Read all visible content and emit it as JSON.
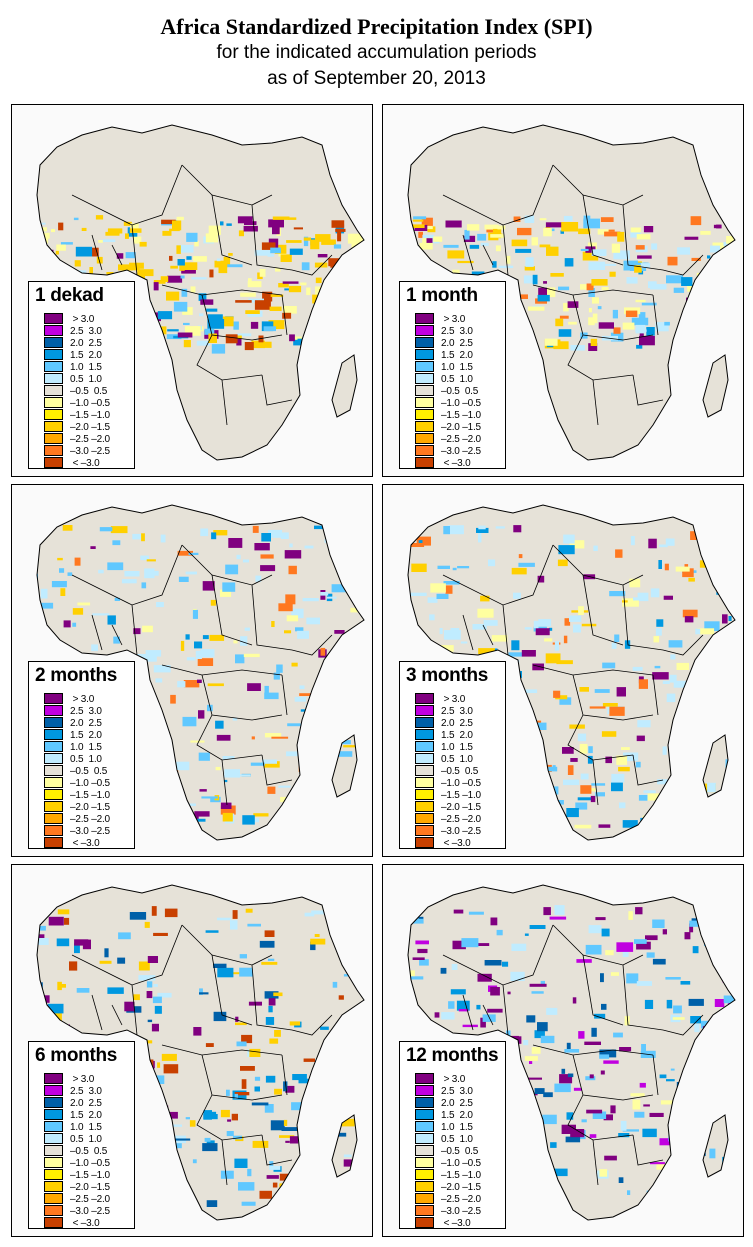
{
  "title": "Africa Standardized Precipitation Index (SPI)",
  "subtitle1": "for the indicated accumulation periods",
  "subtitle2": "as of September 20, 2013",
  "legend": [
    {
      "label": " > 3.0",
      "color": "#800080"
    },
    {
      "label": "2.5  3.0",
      "color": "#c000e0"
    },
    {
      "label": "2.0  2.5",
      "color": "#0060a8"
    },
    {
      "label": "1.5  2.0",
      "color": "#0098e0"
    },
    {
      "label": "1.0  1.5",
      "color": "#60c8ff"
    },
    {
      "label": "0.5  1.0",
      "color": "#c0ecff"
    },
    {
      "label": "–0.5  0.5",
      "color": "#e6e2d8"
    },
    {
      "label": "–1.0 –0.5",
      "color": "#ffffa0"
    },
    {
      "label": "–1.5 –1.0",
      "color": "#fff000"
    },
    {
      "label": "–2.0 –1.5",
      "color": "#ffd000"
    },
    {
      "label": "–2.5 –2.0",
      "color": "#ffa800"
    },
    {
      "label": "–3.0 –2.5",
      "color": "#ff7820"
    },
    {
      "label": " < –3.0",
      "color": "#c84000"
    }
  ],
  "panels": [
    {
      "label": "1 dekad",
      "dominant": [
        "#ffd000",
        "#ffffa0",
        "#c0ecff",
        "#60c8ff",
        "#800080",
        "#c84000",
        "#0098e0"
      ]
    },
    {
      "label": "1 month",
      "dominant": [
        "#ffffa0",
        "#c0ecff",
        "#ffd000",
        "#60c8ff",
        "#800080",
        "#ff7820",
        "#0098e0"
      ]
    },
    {
      "label": "2 months",
      "dominant": [
        "#c0ecff",
        "#60c8ff",
        "#ffd000",
        "#ffffa0",
        "#800080",
        "#ff7820",
        "#0098e0"
      ]
    },
    {
      "label": "3 months",
      "dominant": [
        "#c0ecff",
        "#60c8ff",
        "#ffd000",
        "#0098e0",
        "#800080",
        "#ff7820",
        "#ffffa0"
      ]
    },
    {
      "label": "6 months",
      "dominant": [
        "#60c8ff",
        "#0098e0",
        "#800080",
        "#c84000",
        "#ffd000",
        "#c0ecff",
        "#0060a8"
      ]
    },
    {
      "label": "12 months",
      "dominant": [
        "#60c8ff",
        "#800080",
        "#0098e0",
        "#0060a8",
        "#c0ecff",
        "#ffffa0",
        "#c000e0"
      ]
    }
  ],
  "colors": {
    "land": "#e6e2d8",
    "ocean": "#fafafa",
    "border": "#000000"
  }
}
